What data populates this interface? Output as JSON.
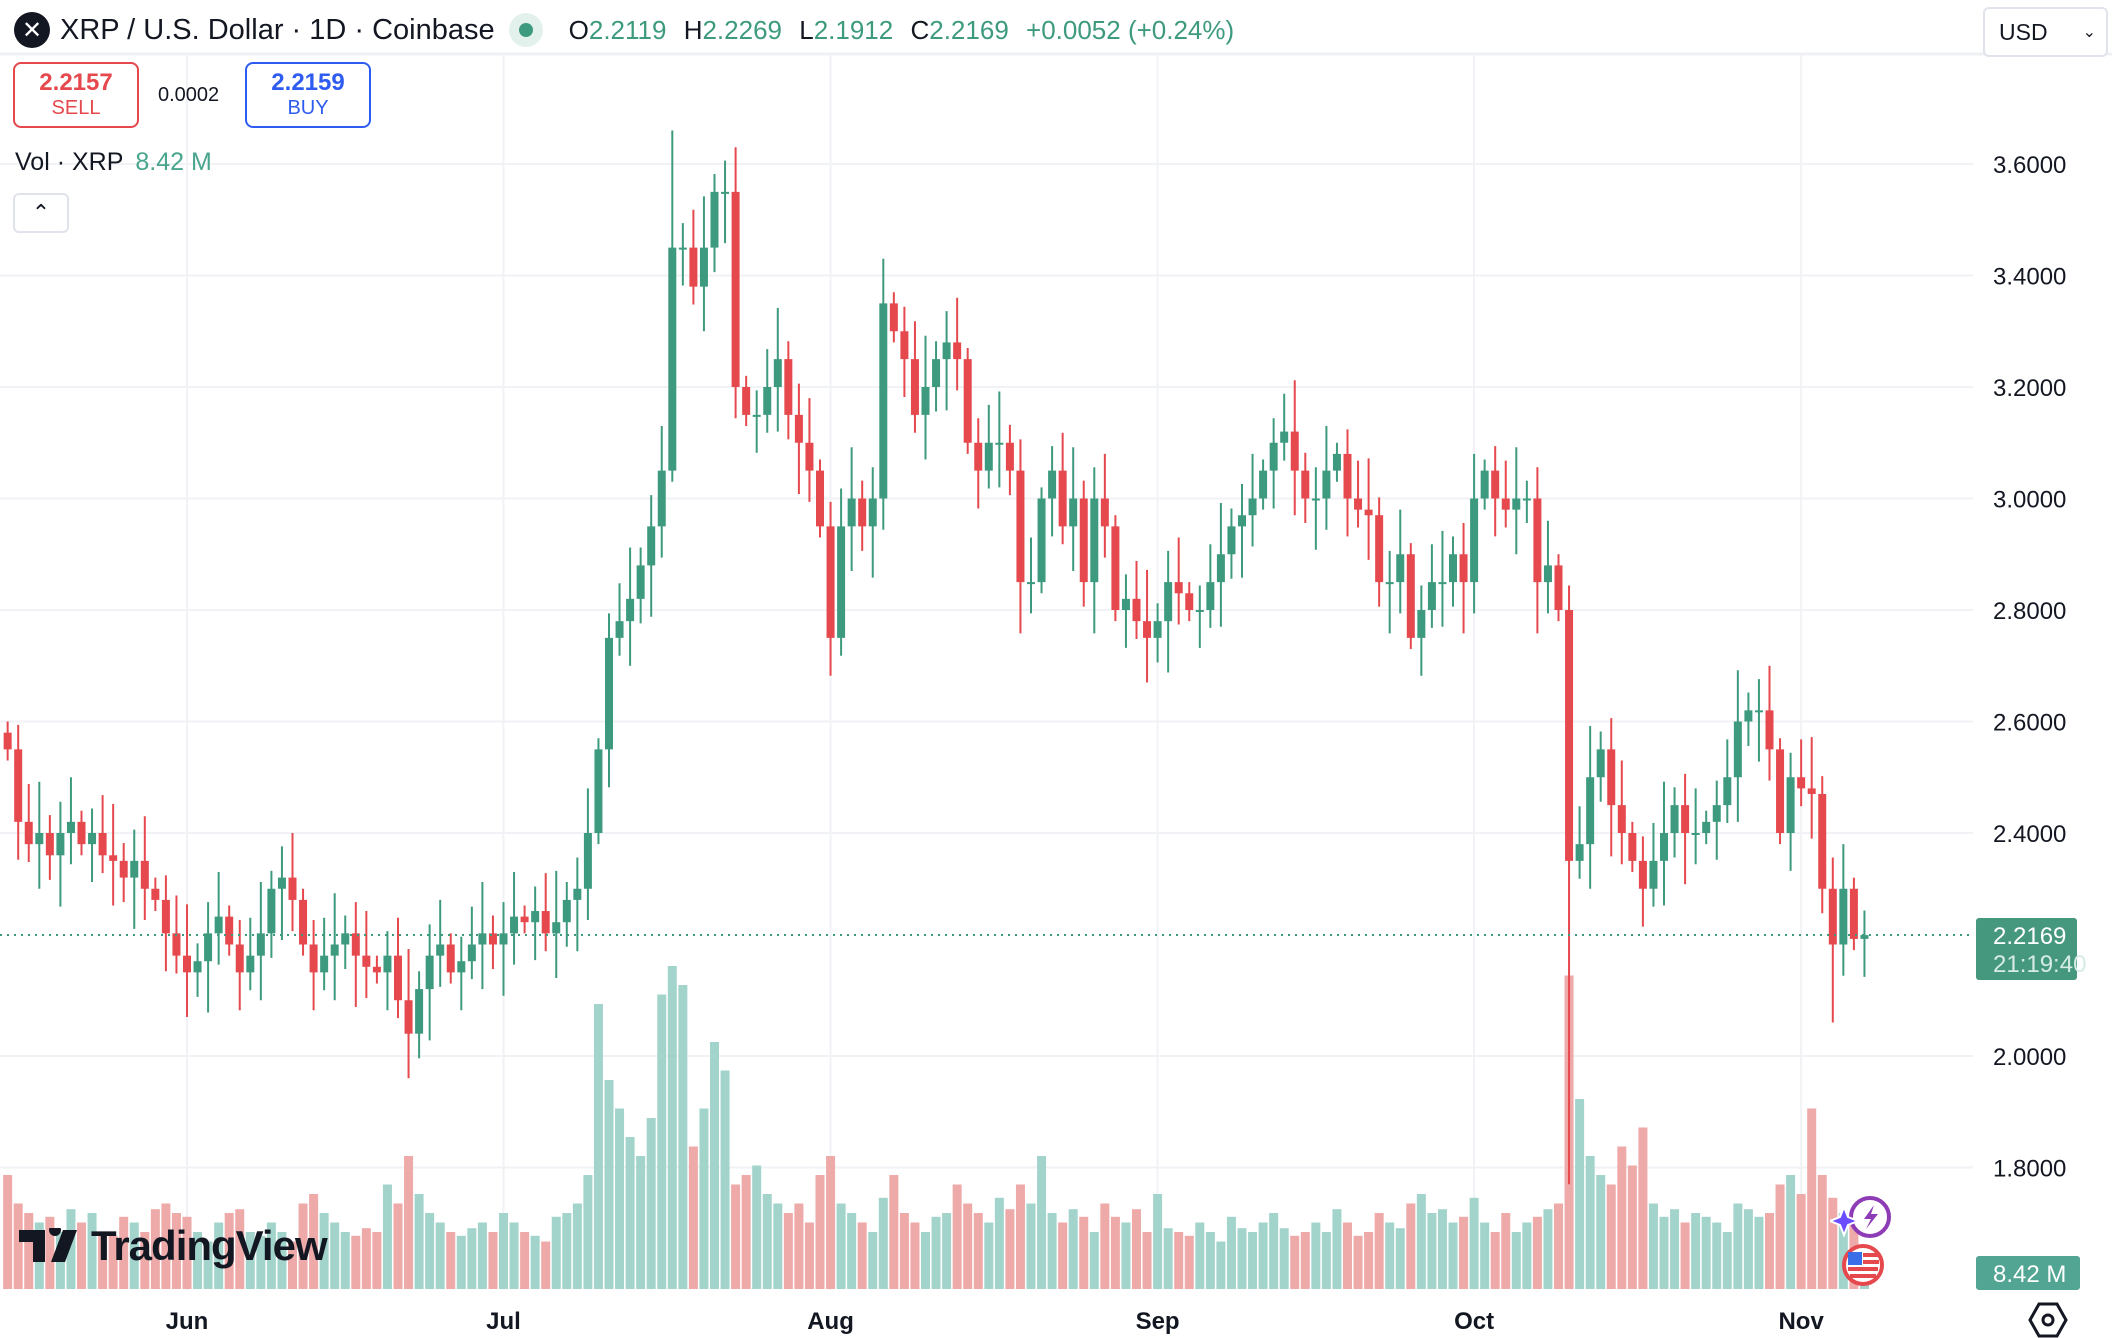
{
  "header": {
    "symbol_icon": "xrp-logo-icon",
    "title": "XRP / U.S. Dollar · 1D · Coinbase",
    "market_status_icon": "market-open-dot-icon",
    "ohlc": {
      "o_label": "O",
      "o": "2.2119",
      "h_label": "H",
      "h": "2.2269",
      "l_label": "L",
      "l": "2.1912",
      "c_label": "C",
      "c": "2.2169",
      "change": "+0.0052 (+0.24%)"
    }
  },
  "trade": {
    "sell_price": "2.2157",
    "sell_label": "SELL",
    "spread": "0.0002",
    "buy_price": "2.2159",
    "buy_label": "BUY"
  },
  "volume_legend": {
    "label": "Vol · XRP",
    "value": "8.42 M"
  },
  "currency": {
    "value": "USD"
  },
  "price_label": {
    "price": "2.2169",
    "countdown": "21:19:40"
  },
  "volume_label": "8.42 M",
  "brand": "TradingView",
  "colors": {
    "up": "#3e9a7e",
    "down": "#e5484d",
    "up_volume": "#a3d4cc",
    "down_volume": "#eeaaa8",
    "grid": "#f0f2f5"
  },
  "chart_data": {
    "type": "candlestick",
    "interval": "1D",
    "start_date": "May 15",
    "y_ticks": [
      "3.6000",
      "3.4000",
      "3.2000",
      "3.0000",
      "2.8000",
      "2.6000",
      "2.4000",
      "2.0000",
      "1.8000"
    ],
    "x_ticks": [
      {
        "label": "Jun",
        "day": 17
      },
      {
        "label": "Jul",
        "day": 47
      },
      {
        "label": "Aug",
        "day": 78
      },
      {
        "label": "Sep",
        "day": 109
      },
      {
        "label": "Oct",
        "day": 139
      },
      {
        "label": "Nov",
        "day": 170
      }
    ],
    "ylim": [
      1.72,
      3.75
    ],
    "first_open": 2.58,
    "close": [
      2.55,
      2.42,
      2.38,
      2.4,
      2.36,
      2.4,
      2.42,
      2.38,
      2.4,
      2.36,
      2.35,
      2.32,
      2.35,
      2.3,
      2.28,
      2.22,
      2.18,
      2.15,
      2.17,
      2.22,
      2.25,
      2.2,
      2.15,
      2.18,
      2.22,
      2.3,
      2.32,
      2.28,
      2.2,
      2.15,
      2.18,
      2.2,
      2.22,
      2.18,
      2.16,
      2.15,
      2.18,
      2.1,
      2.04,
      2.12,
      2.18,
      2.2,
      2.15,
      2.17,
      2.2,
      2.22,
      2.2,
      2.22,
      2.25,
      2.24,
      2.26,
      2.22,
      2.24,
      2.28,
      2.3,
      2.4,
      2.55,
      2.75,
      2.78,
      2.82,
      2.88,
      2.95,
      3.05,
      3.45,
      3.45,
      3.38,
      3.45,
      3.55,
      3.55,
      3.2,
      3.15,
      3.15,
      3.2,
      3.25,
      3.15,
      3.1,
      3.05,
      2.95,
      2.75,
      2.95,
      3.0,
      2.95,
      3.0,
      3.35,
      3.3,
      3.25,
      3.15,
      3.2,
      3.25,
      3.28,
      3.25,
      3.1,
      3.05,
      3.1,
      3.1,
      3.05,
      2.85,
      2.85,
      3.0,
      3.05,
      2.95,
      3.0,
      2.85,
      3.0,
      2.95,
      2.8,
      2.82,
      2.78,
      2.75,
      2.78,
      2.85,
      2.83,
      2.8,
      2.8,
      2.85,
      2.9,
      2.95,
      2.97,
      3.0,
      3.05,
      3.1,
      3.12,
      3.05,
      3.0,
      3.0,
      3.05,
      3.08,
      3.0,
      2.98,
      2.97,
      2.85,
      2.85,
      2.9,
      2.75,
      2.8,
      2.85,
      2.85,
      2.9,
      2.85,
      3.0,
      3.05,
      3.0,
      2.98,
      3.0,
      3.0,
      2.85,
      2.88,
      2.8,
      2.35,
      2.38,
      2.5,
      2.55,
      2.45,
      2.4,
      2.35,
      2.3,
      2.35,
      2.4,
      2.45,
      2.4,
      2.4,
      2.42,
      2.45,
      2.5,
      2.6,
      2.62,
      2.62,
      2.55,
      2.4,
      2.5,
      2.48,
      2.47,
      2.3,
      2.2,
      2.3,
      2.21,
      2.2169
    ],
    "volume_millions": [
      60,
      45,
      40,
      35,
      38,
      30,
      42,
      35,
      40,
      30,
      28,
      38,
      35,
      30,
      42,
      45,
      40,
      38,
      30,
      25,
      35,
      40,
      42,
      30,
      28,
      35,
      30,
      25,
      45,
      50,
      40,
      35,
      30,
      28,
      32,
      30,
      55,
      45,
      70,
      50,
      40,
      35,
      30,
      28,
      32,
      35,
      30,
      40,
      35,
      30,
      28,
      25,
      38,
      40,
      45,
      60,
      150,
      110,
      95,
      80,
      70,
      90,
      155,
      170,
      160,
      75,
      95,
      130,
      115,
      55,
      60,
      65,
      50,
      45,
      40,
      45,
      35,
      60,
      70,
      45,
      40,
      35,
      30,
      48,
      60,
      40,
      35,
      30,
      38,
      40,
      55,
      45,
      40,
      35,
      48,
      42,
      55,
      45,
      70,
      40,
      35,
      42,
      38,
      30,
      45,
      38,
      35,
      42,
      30,
      50,
      32,
      30,
      28,
      35,
      30,
      25,
      38,
      32,
      30,
      35,
      40,
      32,
      28,
      30,
      35,
      30,
      42,
      35,
      28,
      30,
      40,
      35,
      32,
      45,
      50,
      40,
      42,
      35,
      38,
      48,
      35,
      30,
      40,
      30,
      35,
      38,
      42,
      45,
      165,
      100,
      70,
      60,
      55,
      75,
      65,
      85,
      45,
      38,
      42,
      35,
      40,
      38,
      35,
      30,
      45,
      42,
      38,
      40,
      55,
      60,
      50,
      95,
      60,
      48,
      40,
      35,
      8.42
    ],
    "extreme_wicks": [
      {
        "day": 63,
        "high": 3.66
      },
      {
        "day": 148,
        "low": 1.77
      },
      {
        "day": 173,
        "low": 2.06
      }
    ]
  }
}
